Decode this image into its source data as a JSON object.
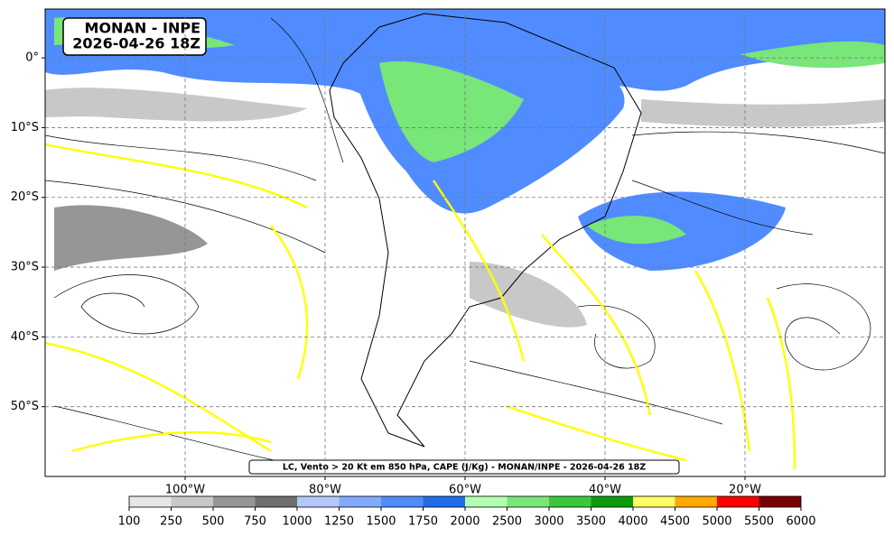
{
  "map": {
    "title": [
      "MONAN - INPE",
      "2026-04-26 18Z"
    ],
    "caption": "LC, Vento > 20 Kt em 850 hPa, CAPE (J/Kg) - MONAN/INPE - 2026-04-26 18Z",
    "xlim": [
      -120,
      0
    ],
    "ylim": [
      -60,
      7
    ],
    "xticks": [
      {
        "value": -100,
        "label": "100°W"
      },
      {
        "value": -80,
        "label": "80°W"
      },
      {
        "value": -60,
        "label": "60°W"
      },
      {
        "value": -40,
        "label": "40°W"
      },
      {
        "value": -20,
        "label": "20°W"
      }
    ],
    "yticks": [
      {
        "value": 0,
        "label": "0°"
      },
      {
        "value": -10,
        "label": "10°S"
      },
      {
        "value": -20,
        "label": "20°S"
      },
      {
        "value": -30,
        "label": "30°S"
      },
      {
        "value": -40,
        "label": "40°S"
      },
      {
        "value": -50,
        "label": "50°S"
      }
    ],
    "grid": true,
    "colorbar": {
      "ticks": [
        100,
        250,
        500,
        750,
        1000,
        1250,
        1500,
        1750,
        2000,
        2500,
        3000,
        3500,
        4000,
        4500,
        5000,
        5500,
        6000
      ],
      "colors": [
        "#e6e6e6",
        "#c8c8c8",
        "#969696",
        "#6e6e6e",
        "#b4c8fa",
        "#82aaff",
        "#508cff",
        "#1e6eeb",
        "#b4ffb4",
        "#78e678",
        "#3cc83c",
        "#0a9b0a",
        "#ffff64",
        "#ffaa00",
        "#ff0000",
        "#780000"
      ]
    }
  }
}
